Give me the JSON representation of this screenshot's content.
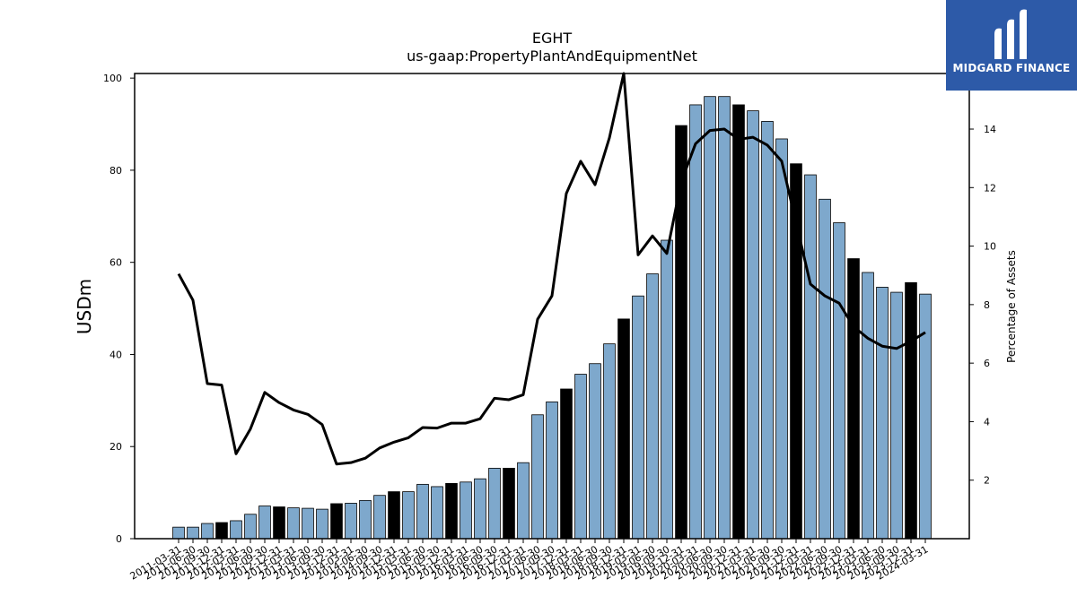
{
  "chart_data": {
    "type": "bar",
    "title": "EGHT",
    "subtitle": "us-gaap:PropertyPlantAndEquipmentNet",
    "xlabel": "",
    "ylabel": "USDm",
    "y2label": "Percentage of Assets",
    "ylim": [
      0,
      101
    ],
    "y2lim": [
      0,
      15.9
    ],
    "yticks": [
      "0",
      "20",
      "40",
      "60",
      "80",
      "100"
    ],
    "y2ticks": [
      "2",
      "4",
      "6",
      "8",
      "10",
      "12",
      "14"
    ],
    "categories": [
      "2011-03-31",
      "2011-06-30",
      "2011-09-30",
      "2011-12-31",
      "2012-03-31",
      "2012-06-30",
      "2012-09-30",
      "2012-12-31",
      "2013-03-31",
      "2013-06-30",
      "2013-09-30",
      "2013-12-31",
      "2014-03-31",
      "2014-06-30",
      "2014-09-30",
      "2014-12-31",
      "2015-03-31",
      "2015-06-30",
      "2015-09-30",
      "2015-12-31",
      "2016-03-31",
      "2016-06-30",
      "2016-09-30",
      "2016-12-31",
      "2017-03-31",
      "2017-06-30",
      "2017-09-30",
      "2017-12-31",
      "2018-03-31",
      "2018-06-30",
      "2018-09-30",
      "2018-12-31",
      "2019-03-31",
      "2019-06-30",
      "2019-09-30",
      "2019-12-31",
      "2020-03-31",
      "2020-06-30",
      "2020-09-30",
      "2020-12-31",
      "2021-03-31",
      "2021-06-30",
      "2021-09-30",
      "2021-12-31",
      "2022-03-31",
      "2022-06-30",
      "2022-09-30",
      "2022-12-31",
      "2023-03-31",
      "2023-06-30",
      "2023-09-30",
      "2023-12-31",
      "2024-03-31"
    ],
    "series": [
      {
        "kind": "bar",
        "values": [
          2.5,
          2.5,
          3.3,
          3.5,
          3.9,
          5.3,
          7.1,
          6.9,
          6.7,
          6.6,
          6.4,
          7.6,
          7.7,
          8.3,
          9.4,
          10.2,
          10.2,
          11.8,
          11.3,
          12.0,
          12.3,
          13.0,
          15.3,
          15.3,
          16.5,
          26.9,
          29.7,
          32.5,
          35.7,
          38.0,
          42.3,
          47.7,
          52.7,
          57.5,
          64.8,
          89.7,
          94.2,
          96.0,
          96.0,
          94.2,
          92.9,
          90.6,
          86.8,
          81.4,
          79.0,
          73.7,
          68.6,
          60.8,
          57.8,
          54.6,
          53.5,
          55.6,
          53.1
        ],
        "annual_index": [
          3,
          7,
          11,
          15,
          19,
          23,
          27,
          31,
          35,
          39,
          43,
          47,
          51
        ],
        "color_quarter": "#7ea8cc",
        "color_annual": "#000000"
      },
      {
        "kind": "line",
        "axis": "right",
        "values": [
          9.05,
          8.15,
          5.3,
          5.25,
          2.9,
          3.75,
          5.0,
          4.65,
          4.4,
          4.25,
          3.9,
          2.55,
          2.6,
          2.75,
          3.1,
          3.3,
          3.45,
          3.8,
          3.78,
          3.95,
          3.95,
          4.1,
          4.8,
          4.75,
          4.92,
          7.5,
          8.3,
          11.8,
          12.9,
          12.1,
          13.7,
          15.9,
          9.7,
          10.35,
          9.75,
          12.2,
          13.5,
          13.95,
          14.0,
          13.65,
          13.72,
          13.45,
          12.9,
          10.8,
          8.7,
          8.3,
          8.05,
          7.25,
          6.85,
          6.58,
          6.5,
          6.75,
          7.05
        ],
        "color": "#000000"
      }
    ]
  },
  "logo": {
    "brand_text": "MIDGARD FINANCE",
    "icon": "midgard-m-icon",
    "background": "#2d5aa8",
    "text_color": "#ffffff"
  }
}
